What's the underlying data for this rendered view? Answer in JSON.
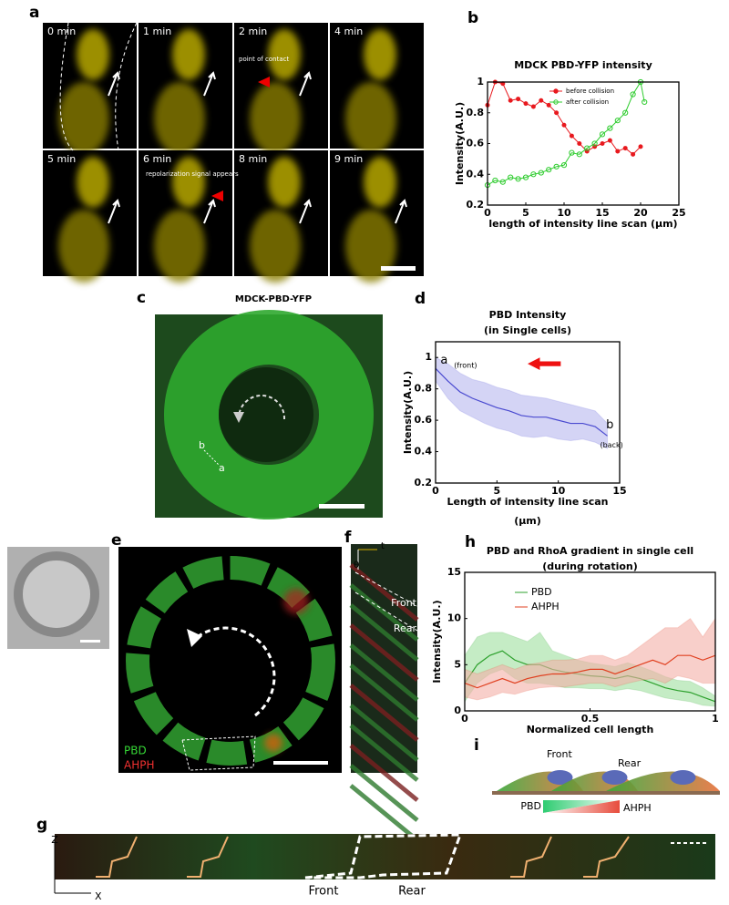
{
  "panels": {
    "a": {
      "label": "a",
      "times": [
        "0 min",
        "1 min",
        "2 min",
        "4 min",
        "5 min",
        "6 min",
        "8 min",
        "9 min"
      ],
      "annotations": [
        "point of contact",
        "repolarization signal appears"
      ]
    },
    "c": {
      "label": "c",
      "title": "MDCK-PBD-YFP",
      "points": [
        "b",
        "a"
      ]
    },
    "e": {
      "label": "e",
      "legend": [
        "PBD",
        "AHPH"
      ]
    },
    "f": {
      "label": "f",
      "axes": [
        "t",
        "θ"
      ],
      "annotations": [
        "Front",
        "Rear"
      ]
    },
    "g": {
      "label": "g",
      "axes": [
        "Z",
        "X"
      ],
      "annotations": [
        "Front",
        "Rear"
      ]
    },
    "i": {
      "label": "i",
      "annotations": [
        "Front",
        "Rear"
      ],
      "gradient": [
        "PBD",
        "AHPH"
      ]
    }
  },
  "chart_data": [
    {
      "type": "line",
      "panel": "b",
      "title": "MDCK PBD-YFP intensity",
      "xlabel": "length of intensity line scan (μm)",
      "ylabel": "Intensity(A.U.)",
      "xlim": [
        0,
        25
      ],
      "xticks": [
        0,
        5,
        10,
        15,
        20,
        25
      ],
      "ylim": [
        0.2,
        1
      ],
      "yticks": [
        0.2,
        0.4,
        0.6,
        0.8,
        1
      ],
      "series": [
        {
          "name": "before collision",
          "color": "#e8191e",
          "marker": "filled",
          "x": [
            0,
            1,
            2,
            3,
            4,
            5,
            6,
            7,
            8,
            9,
            10,
            11,
            12,
            13,
            14,
            15,
            16,
            17,
            18,
            19,
            20
          ],
          "values": [
            0.85,
            1.0,
            0.99,
            0.88,
            0.89,
            0.86,
            0.84,
            0.88,
            0.85,
            0.8,
            0.72,
            0.65,
            0.6,
            0.55,
            0.58,
            0.6,
            0.62,
            0.55,
            0.57,
            0.53,
            0.58
          ]
        },
        {
          "name": "after collision",
          "color": "#2ecc2e",
          "marker": "open",
          "x": [
            0,
            1,
            2,
            3,
            4,
            5,
            6,
            7,
            8,
            9,
            10,
            11,
            12,
            13,
            14,
            15,
            16,
            17,
            18,
            19,
            20,
            20.5
          ],
          "values": [
            0.33,
            0.36,
            0.35,
            0.38,
            0.37,
            0.38,
            0.4,
            0.41,
            0.43,
            0.45,
            0.46,
            0.54,
            0.53,
            0.57,
            0.6,
            0.66,
            0.7,
            0.75,
            0.8,
            0.92,
            1.0,
            0.87
          ]
        }
      ]
    },
    {
      "type": "line",
      "panel": "d",
      "title": "PBD Intensity",
      "subtitle": "(in Single cells)",
      "xlabel": "Length of intensity line scan",
      "xlabel_unit": "(μm)",
      "ylabel": "Intensity(A.U.)",
      "xlim": [
        0,
        15
      ],
      "xticks": [
        0,
        5,
        10,
        15
      ],
      "ylim": [
        0.2,
        1.1
      ],
      "yticks": [
        0.2,
        0.4,
        0.6,
        0.8,
        1
      ],
      "annotations": [
        "a",
        "(front)",
        "b",
        "(back)"
      ],
      "series": [
        {
          "color": "#4a4ad0",
          "band_color": "#b8b8f0",
          "x": [
            0,
            1,
            2,
            3,
            4,
            5,
            6,
            7,
            8,
            9,
            10,
            11,
            12,
            13,
            14
          ],
          "values": [
            0.93,
            0.85,
            0.78,
            0.74,
            0.71,
            0.68,
            0.66,
            0.63,
            0.62,
            0.62,
            0.6,
            0.58,
            0.58,
            0.56,
            0.5
          ],
          "lower": [
            0.85,
            0.74,
            0.66,
            0.62,
            0.58,
            0.55,
            0.53,
            0.5,
            0.49,
            0.5,
            0.48,
            0.47,
            0.48,
            0.46,
            0.42
          ],
          "upper": [
            1.0,
            0.96,
            0.9,
            0.86,
            0.84,
            0.81,
            0.79,
            0.76,
            0.75,
            0.74,
            0.72,
            0.7,
            0.68,
            0.66,
            0.58
          ]
        }
      ]
    },
    {
      "type": "line",
      "panel": "h",
      "title": "PBD and RhoA gradient  in single cell",
      "subtitle": "(during rotation)",
      "xlabel": "Normalized cell length",
      "ylabel": "Intensity(A.U.)",
      "xlim": [
        0,
        1
      ],
      "xticks": [
        0,
        0.5,
        1
      ],
      "ylim": [
        0,
        15
      ],
      "yticks": [
        0,
        5,
        10,
        15
      ],
      "series": [
        {
          "name": "PBD",
          "color": "#2ca02c",
          "band_color": "#9fe09f",
          "x": [
            0,
            0.05,
            0.1,
            0.15,
            0.2,
            0.25,
            0.3,
            0.35,
            0.4,
            0.45,
            0.5,
            0.55,
            0.6,
            0.65,
            0.7,
            0.75,
            0.8,
            0.85,
            0.9,
            0.95,
            1
          ],
          "values": [
            3,
            5,
            6,
            6.5,
            5.5,
            5,
            5,
            4.5,
            4.2,
            4,
            3.8,
            3.7,
            3.5,
            3.8,
            3.5,
            3,
            2.5,
            2.2,
            2,
            1.5,
            1
          ],
          "lower": [
            1,
            3,
            4,
            4.5,
            3.5,
            3,
            3,
            2.8,
            2.5,
            2.5,
            2.4,
            2.4,
            2.2,
            2.4,
            2.2,
            1.8,
            1.4,
            1.2,
            1,
            0.6,
            0.5
          ],
          "upper": [
            6,
            8,
            8.5,
            8.5,
            8,
            7.5,
            8.5,
            6.5,
            6,
            5.5,
            5.2,
            5,
            4.8,
            5.2,
            4.8,
            4.3,
            3.7,
            3.3,
            3.2,
            2.5,
            1.6
          ]
        },
        {
          "name": "AHPH",
          "color": "#e04020",
          "band_color": "#f4b0a8",
          "x": [
            0,
            0.05,
            0.1,
            0.15,
            0.2,
            0.25,
            0.3,
            0.35,
            0.4,
            0.45,
            0.5,
            0.55,
            0.6,
            0.65,
            0.7,
            0.75,
            0.8,
            0.85,
            0.9,
            0.95,
            1
          ],
          "values": [
            3,
            2.5,
            3,
            3.5,
            3,
            3.5,
            3.8,
            4,
            4,
            4.2,
            4.5,
            4.5,
            4,
            4.5,
            5,
            5.5,
            5,
            6,
            6,
            5.5,
            6
          ],
          "lower": [
            1.5,
            1.2,
            1.5,
            2,
            1.8,
            2.2,
            2.5,
            2.6,
            2.6,
            2.8,
            3,
            3,
            2.6,
            3,
            3.3,
            3.5,
            3,
            3.8,
            3.5,
            3,
            3
          ],
          "upper": [
            4.5,
            4,
            4.5,
            5,
            4.5,
            5,
            5.2,
            5.5,
            5.5,
            5.6,
            6,
            6,
            5.5,
            6,
            7,
            8,
            9,
            9,
            10,
            8,
            10
          ]
        }
      ]
    }
  ]
}
